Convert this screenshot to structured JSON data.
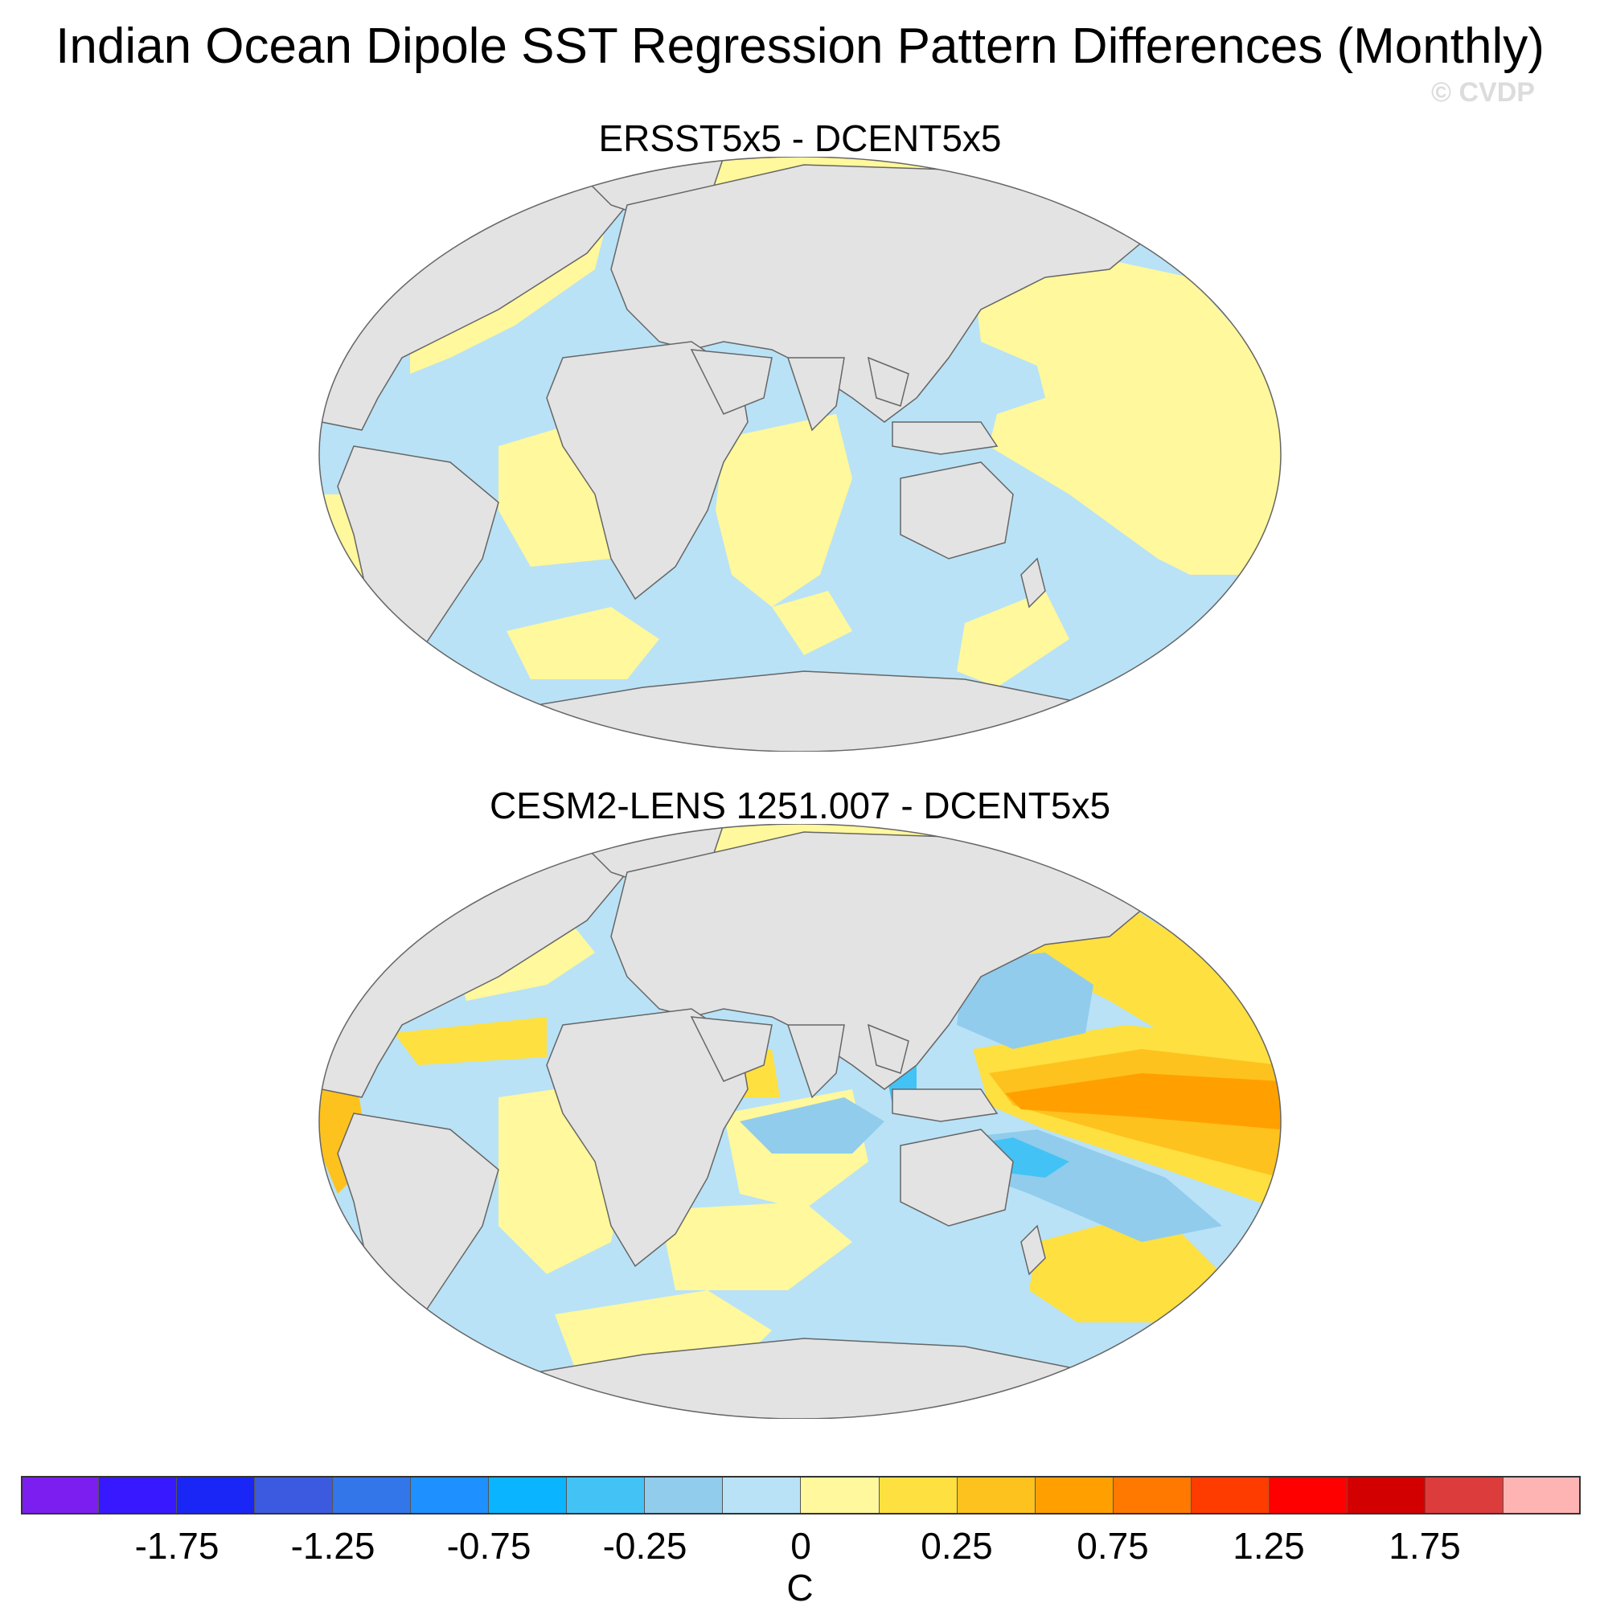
{
  "title": "Indian Ocean Dipole SST Regression Pattern Differences (Monthly)",
  "watermark": "© CVDP",
  "panels": [
    {
      "title": "ERSST5x5 - DCENT5x5"
    },
    {
      "title": "CESM2-LENS 1251.007 - DCENT5x5"
    }
  ],
  "colors": {
    "land": "#e3e3e3",
    "ocean_default": "#b9e2f6",
    "coast": "#666666"
  },
  "colorbar": {
    "unit": "C",
    "colors": [
      "#7c1ef0",
      "#3818ff",
      "#1a26f5",
      "#3c5ae0",
      "#3276ea",
      "#1e90ff",
      "#0ab4ff",
      "#43c3f5",
      "#91ccec",
      "#b9e2f6",
      "#fff89c",
      "#fee040",
      "#fec21e",
      "#ffa000",
      "#ff7800",
      "#ff3c00",
      "#ff0000",
      "#d20000",
      "#dc3c3c",
      "#ffb4b4"
    ],
    "labels": [
      "-1.75",
      "-1.25",
      "-0.75",
      "-0.25",
      "0",
      "0.25",
      "0.75",
      "1.25",
      "1.75"
    ]
  }
}
